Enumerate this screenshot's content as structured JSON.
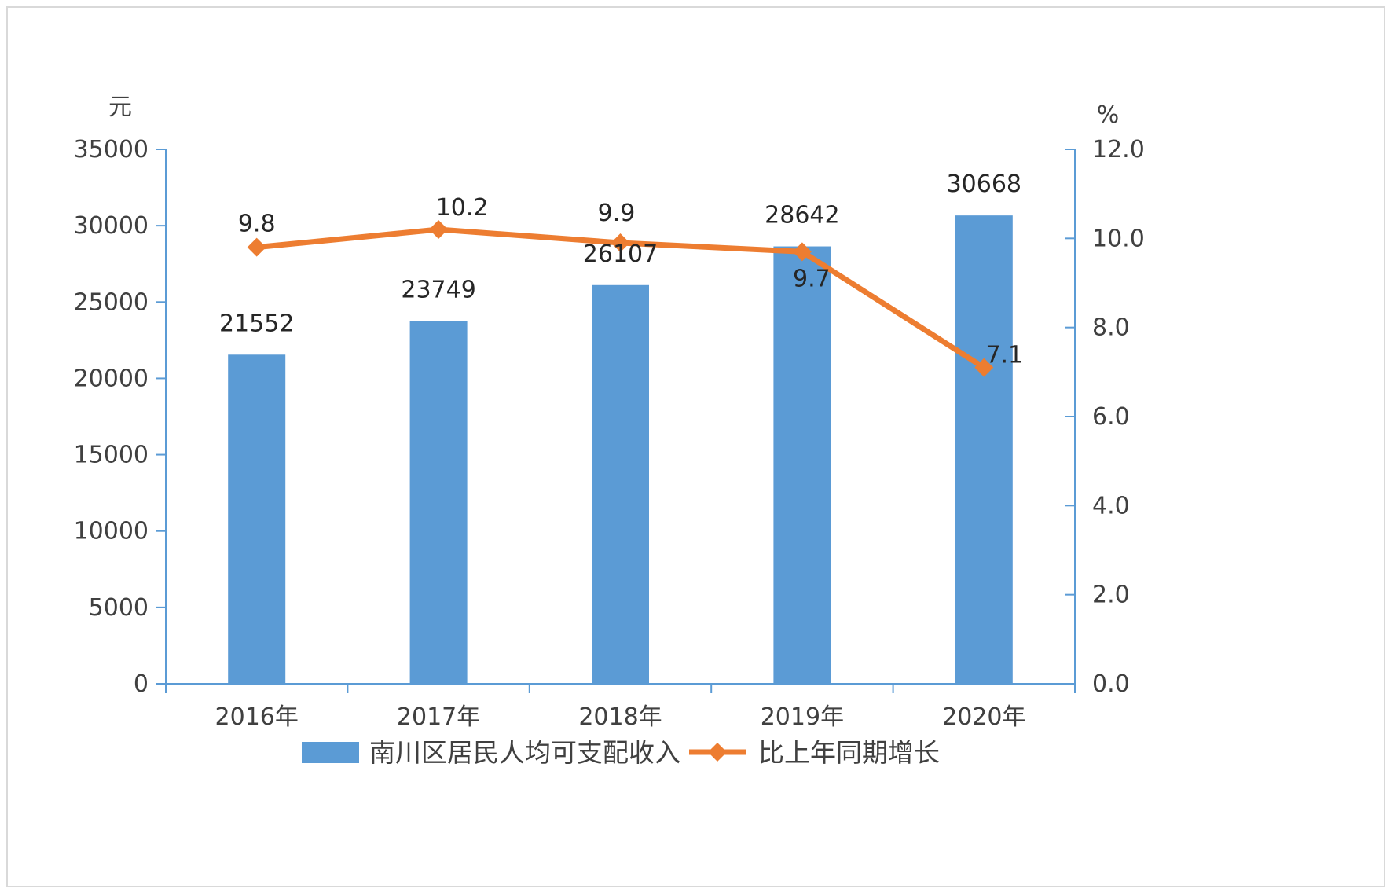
{
  "chart_data": {
    "type": "bar",
    "categories": [
      "2016年",
      "2017年",
      "2018年",
      "2019年",
      "2020年"
    ],
    "series": [
      {
        "name": "南川区居民人均可支配收入",
        "type": "bar",
        "axis": "left",
        "values": [
          21552,
          23749,
          26107,
          28642,
          30668
        ],
        "labels": [
          "21552",
          "23749",
          "26107",
          "28642",
          "30668"
        ],
        "color": "#5b9bd5"
      },
      {
        "name": "比上年同期增长",
        "type": "line",
        "axis": "right",
        "values": [
          9.8,
          10.2,
          9.9,
          9.7,
          7.1
        ],
        "labels": [
          "9.8",
          "10.2",
          "9.9",
          "9.7",
          "7.1"
        ],
        "color": "#ed7d31"
      }
    ],
    "y_left": {
      "unit": "元",
      "ylim": [
        0,
        35000
      ],
      "ticks": [
        "0",
        "5000",
        "10000",
        "15000",
        "20000",
        "25000",
        "30000",
        "35000"
      ]
    },
    "y_right": {
      "unit": "%",
      "ylim": [
        0,
        12
      ],
      "ticks": [
        "0.0",
        "2.0",
        "4.0",
        "6.0",
        "8.0",
        "10.0",
        "12.0"
      ]
    },
    "axis_color": "#5b9bd5",
    "grid": false,
    "legend_position": "bottom"
  }
}
